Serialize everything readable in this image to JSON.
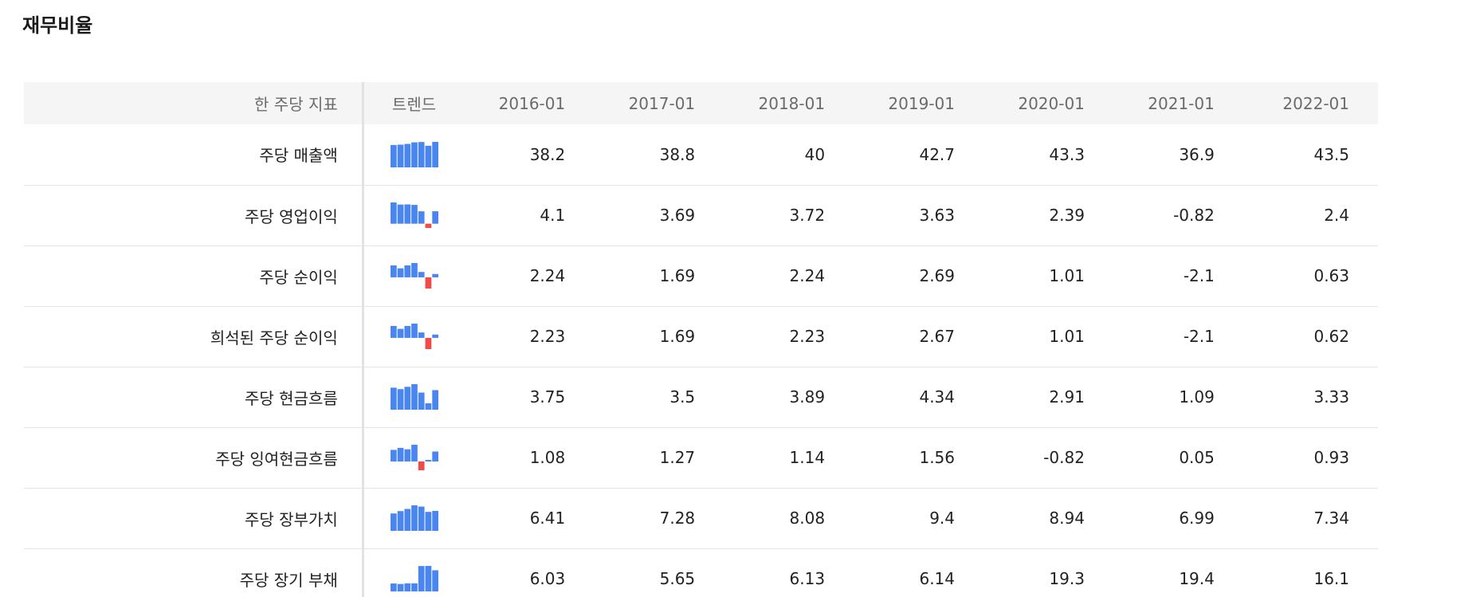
{
  "page": {
    "title": "재무비율"
  },
  "table": {
    "headers": {
      "metric": "한 주당 지표",
      "trend": "트렌드",
      "years": [
        "2016-01",
        "2017-01",
        "2018-01",
        "2019-01",
        "2020-01",
        "2021-01",
        "2022-01"
      ]
    },
    "rows": [
      {
        "label": "주당 매출액",
        "values": [
          "38.2",
          "38.8",
          "40",
          "42.7",
          "43.3",
          "36.9",
          "43.5"
        ],
        "series": [
          38.2,
          38.8,
          40,
          42.7,
          43.3,
          36.9,
          43.5
        ]
      },
      {
        "label": "주당 영업이익",
        "values": [
          "4.1",
          "3.69",
          "3.72",
          "3.63",
          "2.39",
          "-0.82",
          "2.4"
        ],
        "series": [
          4.1,
          3.69,
          3.72,
          3.63,
          2.39,
          -0.82,
          2.4
        ]
      },
      {
        "label": "주당 순이익",
        "values": [
          "2.24",
          "1.69",
          "2.24",
          "2.69",
          "1.01",
          "-2.1",
          "0.63"
        ],
        "series": [
          2.24,
          1.69,
          2.24,
          2.69,
          1.01,
          -2.1,
          0.63
        ]
      },
      {
        "label": "희석된 주당 순이익",
        "values": [
          "2.23",
          "1.69",
          "2.23",
          "2.67",
          "1.01",
          "-2.1",
          "0.62"
        ],
        "series": [
          2.23,
          1.69,
          2.23,
          2.67,
          1.01,
          -2.1,
          0.62
        ]
      },
      {
        "label": "주당 현금흐름",
        "values": [
          "3.75",
          "3.5",
          "3.89",
          "4.34",
          "2.91",
          "1.09",
          "3.33"
        ],
        "series": [
          3.75,
          3.5,
          3.89,
          4.34,
          2.91,
          1.09,
          3.33
        ]
      },
      {
        "label": "주당 잉여현금흐름",
        "values": [
          "1.08",
          "1.27",
          "1.14",
          "1.56",
          "-0.82",
          "0.05",
          "0.93"
        ],
        "series": [
          1.08,
          1.27,
          1.14,
          1.56,
          -0.82,
          0.05,
          0.93
        ]
      },
      {
        "label": "주당 장부가치",
        "values": [
          "6.41",
          "7.28",
          "8.08",
          "9.4",
          "8.94",
          "6.99",
          "7.34"
        ],
        "series": [
          6.41,
          7.28,
          8.08,
          9.4,
          8.94,
          6.99,
          7.34
        ]
      },
      {
        "label": "주당 장기 부채",
        "values": [
          "6.03",
          "5.65",
          "6.13",
          "6.14",
          "19.3",
          "19.4",
          "16.1"
        ],
        "series": [
          6.03,
          5.65,
          6.13,
          6.14,
          19.3,
          19.4,
          16.1
        ]
      }
    ]
  },
  "colors": {
    "positive_bar": "#4a86f0",
    "negative_bar": "#f04a4a",
    "header_bg": "#f5f5f5",
    "row_divider": "#e4e4e4"
  }
}
